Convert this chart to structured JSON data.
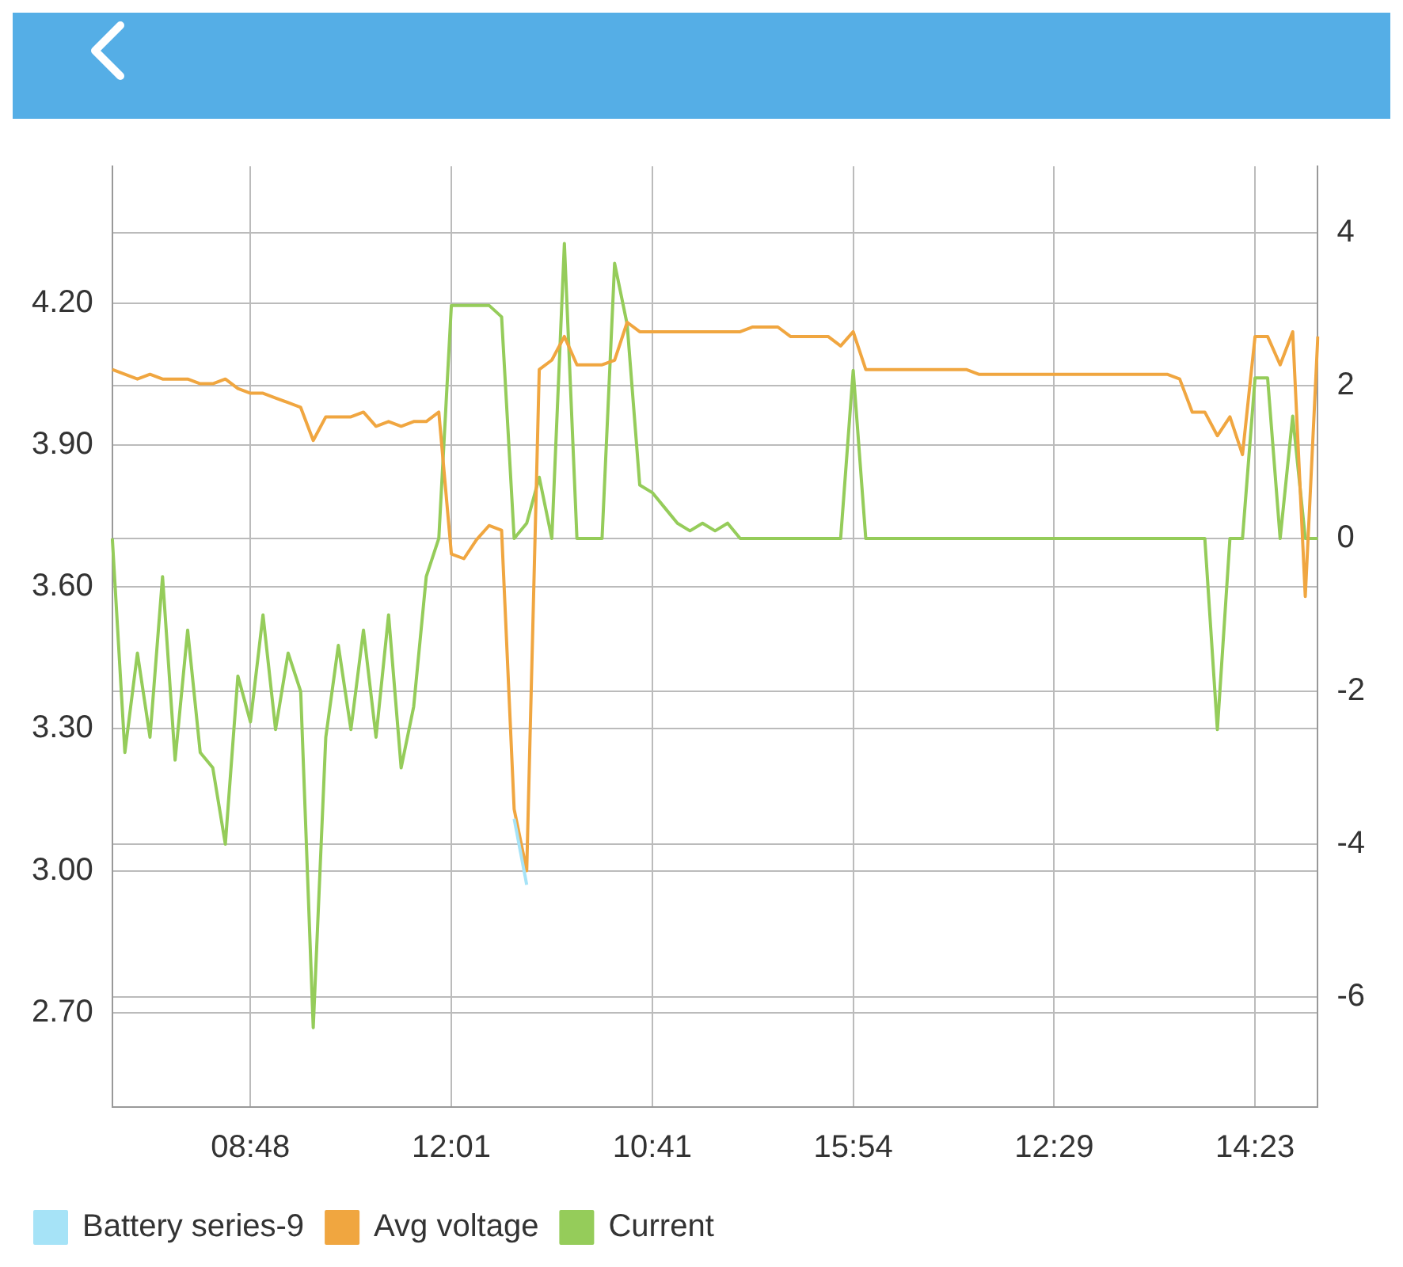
{
  "chart_data": {
    "type": "line",
    "categories": [
      null,
      null,
      null,
      null,
      null,
      null,
      null,
      null,
      null,
      null,
      null,
      "08:48",
      null,
      null,
      null,
      null,
      null,
      null,
      null,
      null,
      null,
      null,
      null,
      null,
      null,
      null,
      null,
      "12:01",
      null,
      null,
      null,
      null,
      null,
      null,
      null,
      null,
      null,
      null,
      null,
      null,
      null,
      null,
      null,
      "10:41",
      null,
      null,
      null,
      null,
      null,
      null,
      null,
      null,
      null,
      null,
      null,
      null,
      null,
      null,
      null,
      "15:54",
      null,
      null,
      null,
      null,
      null,
      null,
      null,
      null,
      null,
      null,
      null,
      null,
      null,
      null,
      null,
      "12:29",
      null,
      null,
      null,
      null,
      null,
      null,
      null,
      null,
      null,
      null,
      null,
      null,
      null,
      null,
      null,
      "14:23",
      null,
      null,
      null,
      null,
      null
    ],
    "series": [
      {
        "name": "Battery series-9",
        "color": "#a6e3f7",
        "values": [
          null,
          null,
          null,
          null,
          null,
          null,
          null,
          null,
          null,
          null,
          null,
          null,
          null,
          null,
          null,
          null,
          null,
          null,
          null,
          null,
          null,
          null,
          null,
          null,
          null,
          null,
          null,
          null,
          null,
          null,
          null,
          null,
          3.11,
          2.97,
          null,
          null,
          null,
          null,
          null,
          null,
          null,
          null,
          null,
          null,
          null,
          null,
          null,
          null,
          null,
          null,
          null,
          null,
          null,
          null,
          null,
          null,
          null,
          null,
          null,
          null,
          null,
          null,
          null,
          null,
          null,
          null,
          null,
          null,
          null,
          null,
          null,
          null,
          null,
          null,
          null,
          null,
          null,
          null,
          null,
          null,
          null,
          null,
          null,
          null,
          null,
          null,
          null,
          null,
          null,
          null,
          null,
          null,
          null,
          null,
          null,
          null,
          null
        ]
      },
      {
        "name": "Avg voltage",
        "color": "#f0a640",
        "values": [
          4.06,
          4.05,
          4.04,
          4.05,
          4.04,
          4.04,
          4.04,
          4.03,
          4.03,
          4.04,
          4.02,
          4.01,
          4.01,
          4.0,
          3.99,
          3.98,
          3.91,
          3.96,
          3.96,
          3.96,
          3.97,
          3.94,
          3.95,
          3.94,
          3.95,
          3.95,
          3.97,
          3.67,
          3.66,
          3.7,
          3.73,
          3.72,
          3.13,
          3.0,
          4.06,
          4.08,
          4.13,
          4.07,
          4.07,
          4.07,
          4.08,
          4.16,
          4.14,
          4.14,
          4.14,
          4.14,
          4.14,
          4.14,
          4.14,
          4.14,
          4.14,
          4.15,
          4.15,
          4.15,
          4.13,
          4.13,
          4.13,
          4.13,
          4.11,
          4.14,
          4.06,
          4.06,
          4.06,
          4.06,
          4.06,
          4.06,
          4.06,
          4.06,
          4.06,
          4.05,
          4.05,
          4.05,
          4.05,
          4.05,
          4.05,
          4.05,
          4.05,
          4.05,
          4.05,
          4.05,
          4.05,
          4.05,
          4.05,
          4.05,
          4.05,
          4.04,
          3.97,
          3.97,
          3.92,
          3.96,
          3.88,
          4.13,
          4.13,
          4.07,
          4.14,
          3.58,
          4.13
        ]
      },
      {
        "name": "Current",
        "color": "#95cc5a",
        "axis": "y2",
        "values": [
          0,
          -2.8,
          -1.5,
          -2.6,
          -0.5,
          -2.9,
          -1.2,
          -2.8,
          -3.0,
          -4.0,
          -1.8,
          -2.4,
          -1.0,
          -2.5,
          -1.5,
          -2.0,
          -6.4,
          -2.6,
          -1.4,
          -2.5,
          -1.2,
          -2.6,
          -1.0,
          -3.0,
          -2.2,
          -0.5,
          0,
          3.05,
          3.05,
          3.05,
          3.05,
          2.9,
          0,
          0.2,
          0.8,
          0,
          3.86,
          0,
          0,
          0,
          3.6,
          2.8,
          0.7,
          0.6,
          0.4,
          0.2,
          0.1,
          0.2,
          0.1,
          0.2,
          0,
          0,
          0,
          0,
          0,
          0,
          0,
          0,
          0,
          2.2,
          0,
          0,
          0,
          0,
          0,
          0,
          0,
          0,
          0,
          0,
          0,
          0,
          0,
          0,
          0,
          0,
          0,
          0,
          0,
          0,
          0,
          0,
          0,
          0,
          0,
          0,
          0,
          0,
          -2.5,
          0,
          0,
          2.1,
          2.1,
          0,
          1.6,
          0,
          0
        ]
      }
    ],
    "ylim": [
      2.5,
      4.49
    ],
    "yticks": [
      {
        "value": 2.7,
        "label": "2.70"
      },
      {
        "value": 3.0,
        "label": "3.00"
      },
      {
        "value": 3.3,
        "label": "3.30"
      },
      {
        "value": 3.6,
        "label": "3.60"
      },
      {
        "value": 3.9,
        "label": "3.90"
      },
      {
        "value": 4.2,
        "label": "4.20"
      }
    ],
    "y2lim": [
      -7.44,
      4.87
    ],
    "y2ticks": [
      -6,
      -4,
      -2,
      0,
      2,
      4
    ],
    "grid": true,
    "legend": "bottom",
    "marker": "none",
    "line_style": "solid"
  }
}
